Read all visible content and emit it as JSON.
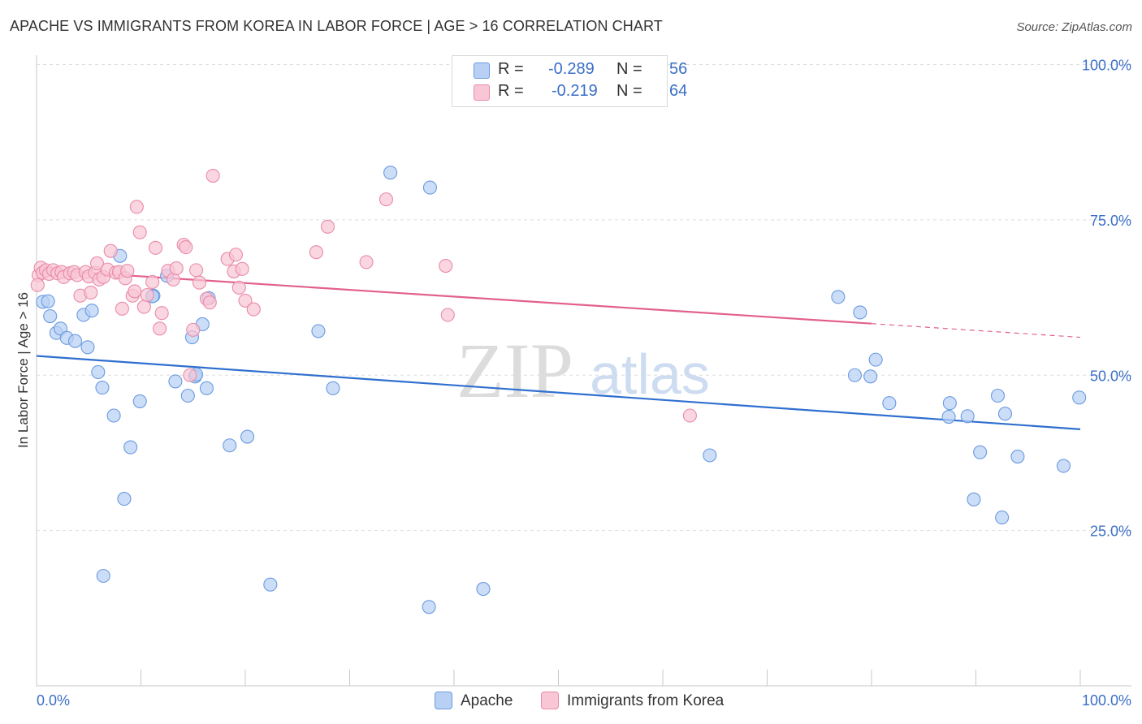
{
  "title": "APACHE VS IMMIGRANTS FROM KOREA IN LABOR FORCE | AGE > 16 CORRELATION CHART",
  "source": "Source: ZipAtlas.com",
  "watermark": {
    "zip": "ZIP",
    "atlas": "atlas"
  },
  "legend": {
    "r_label": "R =",
    "n_label": "N =",
    "series": [
      {
        "name": "Apache",
        "r": "-0.289",
        "n": "56",
        "fill": "#b8d0f4",
        "stroke": "#6a9be0"
      },
      {
        "name": "Immigrants from Korea",
        "r": "-0.219",
        "n": "64",
        "fill": "#f8c6d5",
        "stroke": "#e98aa9"
      }
    ]
  },
  "chart_data": {
    "type": "scatter",
    "title": "APACHE VS IMMIGRANTS FROM KOREA IN LABOR FORCE | AGE > 16 CORRELATION CHART",
    "xlabel": "",
    "ylabel": "In Labor Force | Age > 16",
    "xlim": [
      0,
      100
    ],
    "ylim": [
      0,
      100
    ],
    "x_tick_labels": [
      "0.0%",
      "100.0%"
    ],
    "y_tick_labels": [
      {
        "value": 100,
        "label": "100.0%"
      },
      {
        "value": 75,
        "label": "75.0%"
      },
      {
        "value": 50,
        "label": "50.0%"
      },
      {
        "value": 25,
        "label": "25.0%"
      }
    ],
    "colors": {
      "apache_line": "#2f6fcf",
      "korea_line": "#e2618c",
      "tick_label": "#3b6fc7",
      "grid": "#dedede"
    },
    "series": [
      {
        "name": "Apache",
        "points": [
          [
            0.6,
            61.8
          ],
          [
            1.3,
            59.5
          ],
          [
            1.9,
            56.8
          ],
          [
            2.3,
            57.5
          ],
          [
            2.9,
            56.0
          ],
          [
            3.7,
            55.5
          ],
          [
            1.1,
            61.9
          ],
          [
            4.5,
            59.7
          ],
          [
            5.3,
            60.4
          ],
          [
            4.9,
            54.5
          ],
          [
            5.9,
            50.5
          ],
          [
            6.3,
            48.0
          ],
          [
            7.4,
            43.5
          ],
          [
            8.0,
            69.2
          ],
          [
            9.0,
            38.4
          ],
          [
            8.4,
            30.1
          ],
          [
            9.9,
            45.8
          ],
          [
            11.2,
            62.8
          ],
          [
            12.5,
            66.0
          ],
          [
            13.3,
            49.0
          ],
          [
            14.5,
            46.7
          ],
          [
            14.9,
            56.1
          ],
          [
            15.2,
            49.8
          ],
          [
            15.9,
            58.2
          ],
          [
            16.5,
            62.4
          ],
          [
            16.3,
            47.9
          ],
          [
            18.5,
            38.7
          ],
          [
            20.2,
            40.1
          ],
          [
            22.4,
            16.3
          ],
          [
            27.0,
            57.1
          ],
          [
            28.4,
            47.9
          ],
          [
            33.9,
            82.6
          ],
          [
            37.6,
            12.7
          ],
          [
            37.7,
            80.2
          ],
          [
            42.8,
            15.6
          ],
          [
            64.5,
            37.1
          ],
          [
            76.8,
            62.6
          ],
          [
            78.9,
            60.1
          ],
          [
            78.4,
            50.0
          ],
          [
            79.9,
            49.8
          ],
          [
            80.4,
            52.5
          ],
          [
            81.7,
            45.5
          ],
          [
            87.4,
            43.3
          ],
          [
            87.5,
            45.5
          ],
          [
            89.2,
            43.4
          ],
          [
            89.8,
            30.0
          ],
          [
            90.4,
            37.6
          ],
          [
            92.1,
            46.7
          ],
          [
            92.5,
            27.1
          ],
          [
            92.8,
            43.8
          ],
          [
            94.0,
            36.9
          ],
          [
            98.4,
            35.4
          ],
          [
            99.9,
            46.4
          ],
          [
            11.1,
            62.7
          ],
          [
            15.3,
            50.1
          ],
          [
            6.4,
            17.7
          ]
        ]
      },
      {
        "name": "Immigrants from Korea",
        "points": [
          [
            0.2,
            66.1
          ],
          [
            0.4,
            67.3
          ],
          [
            0.6,
            66.5
          ],
          [
            0.9,
            66.9
          ],
          [
            1.2,
            66.3
          ],
          [
            1.6,
            66.9
          ],
          [
            2.0,
            66.4
          ],
          [
            2.4,
            66.6
          ],
          [
            2.6,
            65.8
          ],
          [
            3.2,
            66.4
          ],
          [
            3.6,
            66.6
          ],
          [
            3.9,
            66.1
          ],
          [
            4.2,
            62.8
          ],
          [
            4.7,
            66.6
          ],
          [
            5.0,
            65.9
          ],
          [
            5.2,
            63.3
          ],
          [
            5.6,
            66.5
          ],
          [
            5.8,
            68.0
          ],
          [
            6.0,
            65.4
          ],
          [
            6.4,
            65.8
          ],
          [
            6.8,
            67.0
          ],
          [
            7.1,
            70.0
          ],
          [
            7.6,
            66.5
          ],
          [
            7.9,
            66.6
          ],
          [
            8.2,
            60.7
          ],
          [
            8.5,
            65.6
          ],
          [
            8.7,
            66.8
          ],
          [
            9.2,
            62.8
          ],
          [
            9.4,
            63.5
          ],
          [
            9.6,
            77.1
          ],
          [
            9.9,
            73.0
          ],
          [
            10.3,
            61.0
          ],
          [
            10.6,
            62.9
          ],
          [
            11.1,
            65.0
          ],
          [
            11.4,
            70.5
          ],
          [
            11.8,
            57.5
          ],
          [
            12.0,
            60.0
          ],
          [
            12.6,
            66.8
          ],
          [
            13.1,
            65.4
          ],
          [
            13.4,
            67.2
          ],
          [
            14.1,
            71.0
          ],
          [
            14.3,
            70.6
          ],
          [
            15.0,
            57.3
          ],
          [
            15.3,
            66.9
          ],
          [
            15.6,
            64.9
          ],
          [
            16.3,
            62.3
          ],
          [
            16.6,
            61.7
          ],
          [
            16.9,
            82.1
          ],
          [
            18.3,
            68.7
          ],
          [
            18.9,
            66.7
          ],
          [
            19.1,
            69.4
          ],
          [
            19.4,
            64.1
          ],
          [
            19.7,
            67.1
          ],
          [
            20.0,
            62.0
          ],
          [
            20.8,
            60.6
          ],
          [
            26.8,
            69.8
          ],
          [
            27.9,
            73.9
          ],
          [
            31.6,
            68.2
          ],
          [
            33.5,
            78.3
          ],
          [
            39.2,
            67.6
          ],
          [
            39.4,
            59.7
          ],
          [
            62.6,
            43.5
          ],
          [
            0.1,
            64.5
          ],
          [
            14.7,
            50.0
          ]
        ]
      }
    ],
    "trend_lines": [
      {
        "series": "Apache",
        "x": [
          0,
          100
        ],
        "y": [
          53.1,
          41.3
        ]
      },
      {
        "series": "Immigrants from Korea",
        "x": [
          0,
          80
        ],
        "y": [
          67.0,
          58.3
        ]
      },
      {
        "series": "Immigrants from Korea",
        "style": "dashed",
        "x": [
          80,
          100
        ],
        "y": [
          58.3,
          56.1
        ]
      }
    ]
  }
}
